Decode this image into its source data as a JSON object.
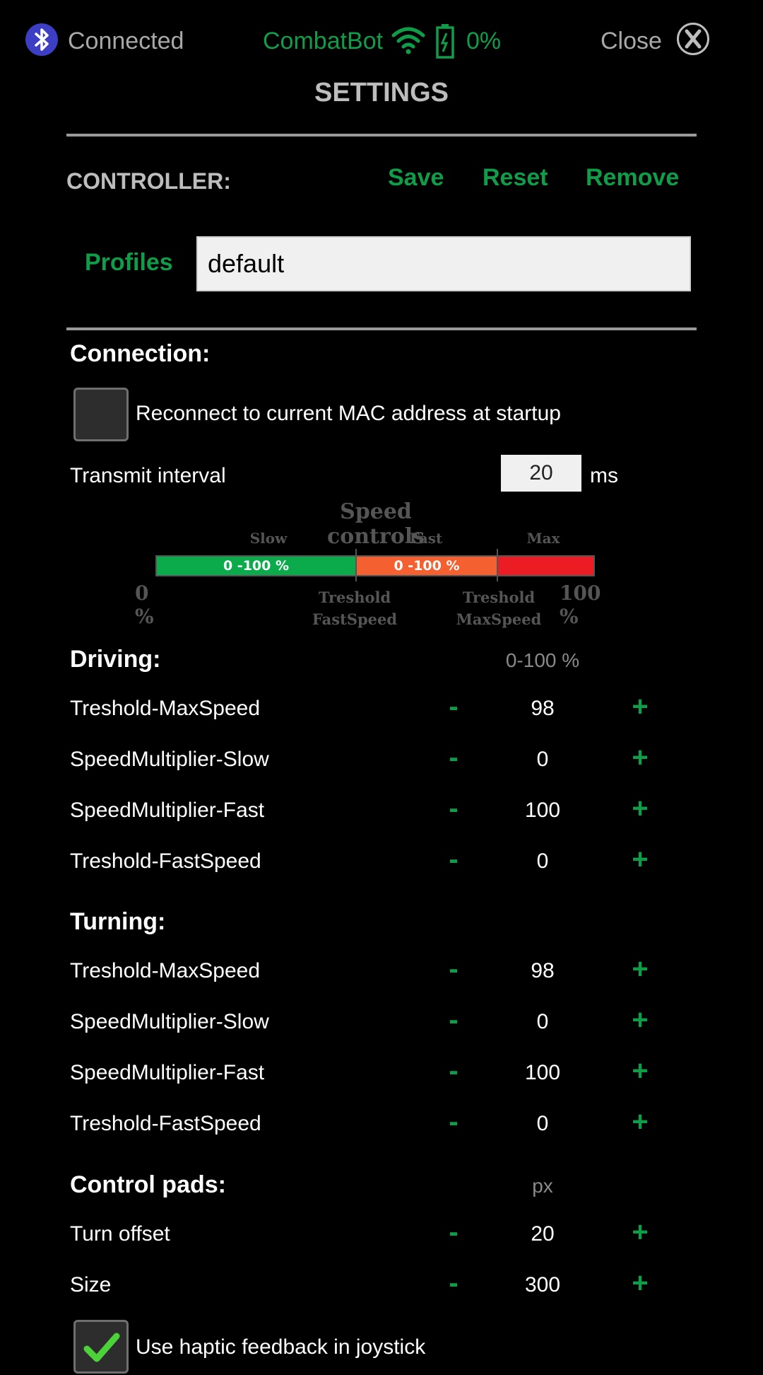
{
  "status": {
    "connection_text": "Connected",
    "device_name": "CombatBot",
    "battery": "0%",
    "close_label": "Close",
    "icons": {
      "bluetooth": "bluetooth-icon",
      "wifi": "wifi-icon",
      "battery": "battery-icon",
      "close": "close-icon"
    }
  },
  "page_title": "SETTINGS",
  "controller": {
    "label": "CONTROLLER:",
    "save": "Save",
    "reset": "Reset",
    "remove": "Remove"
  },
  "profiles": {
    "label": "Profiles",
    "value": "default"
  },
  "connection": {
    "title": "Connection:",
    "reconnect_label": "Reconnect to current MAC address at startup",
    "reconnect_checked": false,
    "interval_label": "Transmit interval",
    "interval_value": "20",
    "interval_unit": "ms"
  },
  "speed_diagram": {
    "title": "Speed controls",
    "slow": "Slow",
    "fast": "Fast",
    "max": "Max",
    "slow_range": "0 -100 %",
    "fast_range": "0 -100 %",
    "min_pct": "0 %",
    "max_pct": "100 %",
    "treshold": "Treshold",
    "fastspeed": "FastSpeed",
    "maxspeed": "MaxSpeed",
    "colors": {
      "slow": "#0bab4c",
      "fast": "#f4602f",
      "max": "#ec1c24"
    }
  },
  "driving": {
    "title": "Driving:",
    "unit": "0-100 %",
    "rows": [
      {
        "label": "Treshold-MaxSpeed",
        "value": "98"
      },
      {
        "label": "SpeedMultiplier-Slow",
        "value": "0"
      },
      {
        "label": "SpeedMultiplier-Fast",
        "value": "100"
      },
      {
        "label": "Treshold-FastSpeed",
        "value": "0"
      }
    ]
  },
  "turning": {
    "title": "Turning:",
    "rows": [
      {
        "label": "Treshold-MaxSpeed",
        "value": "98"
      },
      {
        "label": "SpeedMultiplier-Slow",
        "value": "0"
      },
      {
        "label": "SpeedMultiplier-Fast",
        "value": "100"
      },
      {
        "label": "Treshold-FastSpeed",
        "value": "0"
      }
    ]
  },
  "pads": {
    "title": "Control pads:",
    "unit": "px",
    "rows": [
      {
        "label": "Turn offset",
        "value": "20"
      },
      {
        "label": "Size",
        "value": "300"
      }
    ]
  },
  "haptic": {
    "label": "Use haptic feedback in joystick",
    "checked": true
  },
  "stepper": {
    "minus": "-",
    "plus": "+"
  },
  "accent_color": "#0f9d4a"
}
